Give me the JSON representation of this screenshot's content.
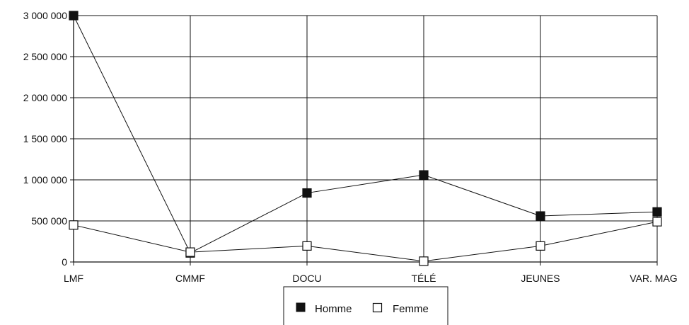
{
  "chart_data": {
    "type": "line",
    "categories": [
      "LMF",
      "CMMF",
      "DOCU",
      "TÉLÉ",
      "JEUNES",
      "VAR. MAG"
    ],
    "series": [
      {
        "name": "Homme",
        "values": [
          3000000,
          110000,
          840000,
          1060000,
          560000,
          610000
        ],
        "marker": "filled-square",
        "color": "#111111"
      },
      {
        "name": "Femme",
        "values": [
          450000,
          120000,
          195000,
          10000,
          195000,
          490000
        ],
        "marker": "open-square",
        "color": "#111111"
      }
    ],
    "yticks": [
      "3 000 000",
      "2 500 000",
      "2 000 000",
      "1 500 000",
      "1 000 000",
      "500 000",
      "0"
    ],
    "ylim": [
      0,
      3000000
    ],
    "grid": true,
    "legend_position": "bottom-center",
    "title": "",
    "xlabel": "",
    "ylabel": ""
  }
}
